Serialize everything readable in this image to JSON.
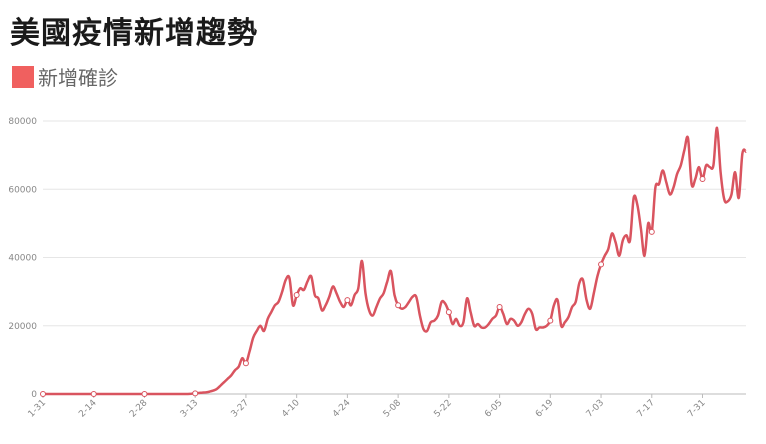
{
  "chart_data": {
    "type": "line",
    "title": "美國疫情新增趨勢",
    "legend": {
      "position": "top-left"
    },
    "grid": true,
    "ylim": [
      0,
      80000
    ],
    "yticks": [
      0,
      20000,
      40000,
      60000,
      80000
    ],
    "x_tick_labels": [
      "1-31",
      "2-14",
      "2-28",
      "3-13",
      "3-27",
      "4-10",
      "4-24",
      "5-08",
      "5-22",
      "6-05",
      "6-19",
      "7-03",
      "7-17",
      "7-31"
    ],
    "x_tick_interval_days": 14,
    "series": [
      {
        "name": "新增確診",
        "color": "#d9545f",
        "legend_color": "#f0605f",
        "values": [
          0,
          0,
          0,
          0,
          0,
          0,
          0,
          0,
          0,
          0,
          0,
          0,
          0,
          0,
          0,
          0,
          0,
          0,
          0,
          0,
          0,
          0,
          0,
          0,
          0,
          0,
          0,
          0,
          0,
          0,
          0,
          0,
          0,
          0,
          0,
          0,
          0,
          0,
          0,
          0,
          0,
          100,
          200,
          300,
          400,
          500,
          700,
          1000,
          1500,
          2500,
          3500,
          4500,
          5500,
          7000,
          8000,
          10500,
          9000,
          12500,
          16500,
          18500,
          20000,
          18500,
          22000,
          24000,
          26000,
          27000,
          30000,
          33500,
          34000,
          26000,
          29000,
          31000,
          30500,
          33000,
          34500,
          29000,
          28000,
          24500,
          26000,
          28500,
          31500,
          29500,
          27000,
          25500,
          27500,
          26000,
          29000,
          31000,
          39000,
          29500,
          24500,
          23000,
          25500,
          28000,
          29500,
          33000,
          36000,
          29000,
          26000,
          25000,
          25500,
          27000,
          28500,
          28500,
          23000,
          19000,
          18500,
          21000,
          21500,
          23000,
          27000,
          26500,
          24000,
          20500,
          22000,
          20000,
          21000,
          28000,
          24000,
          20000,
          20500,
          19500,
          19500,
          20500,
          22000,
          23000,
          25500,
          23500,
          20500,
          22000,
          21500,
          20000,
          21000,
          23500,
          25000,
          23500,
          19000,
          19500,
          19500,
          20000,
          21500,
          26000,
          27500,
          20000,
          21000,
          22500,
          25500,
          27000,
          32500,
          33500,
          27500,
          25000,
          29500,
          34500,
          38000,
          40500,
          42500,
          47000,
          44500,
          40500,
          45000,
          46500,
          45000,
          57500,
          55500,
          48500,
          40500,
          50000,
          47500,
          60500,
          61500,
          65500,
          62000,
          58500,
          60500,
          64500,
          67000,
          71500,
          75000,
          61500,
          63000,
          66500,
          63000,
          67000,
          66500,
          67000,
          78000,
          65000,
          57000,
          56500,
          58500,
          65000,
          57500,
          70500,
          71000
        ],
        "marker_days": [
          0,
          14,
          28,
          42,
          56,
          70,
          84,
          98,
          112,
          126,
          140,
          154,
          168,
          182
        ]
      }
    ]
  }
}
